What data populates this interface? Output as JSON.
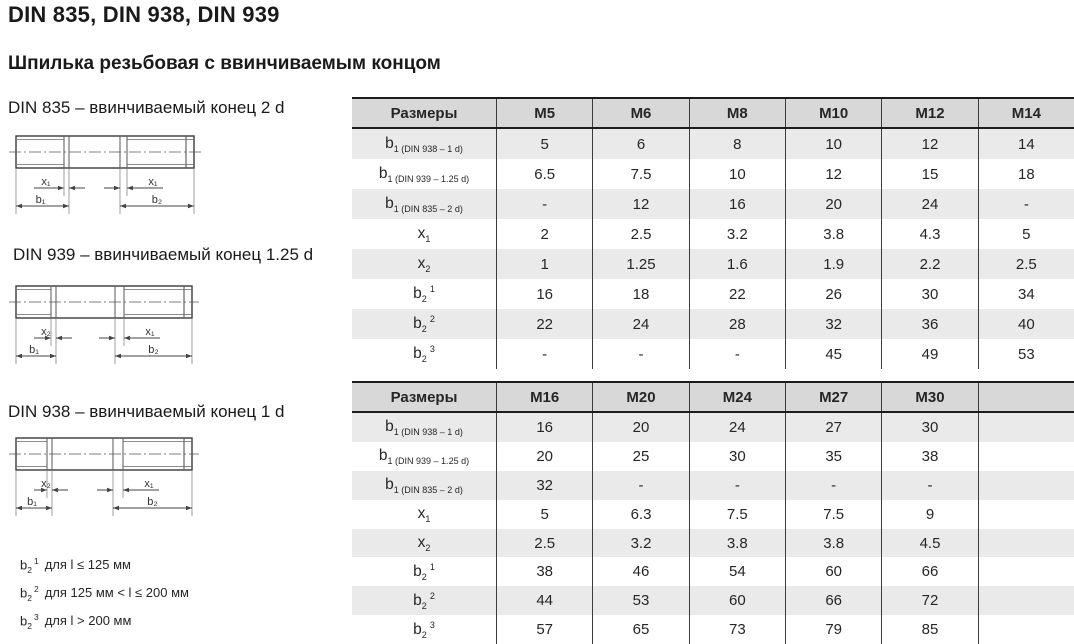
{
  "page": {
    "title": "DIN 835, DIN 938, DIN 939",
    "subtitle": "Шпилька резьбовая с ввинчиваемым концом"
  },
  "drawings": [
    {
      "caption": "DIN 835 – ввинчиваемый конец 2 d",
      "labels": {
        "x_left": "x₁",
        "x_right": "x₁",
        "b_left": "b₁",
        "b_right": "b₂"
      }
    },
    {
      "caption": "DIN 939 – ввинчиваемый конец 1.25 d",
      "labels": {
        "x_left": "x₂",
        "x_right": "x₁",
        "b_left": "b₁",
        "b_right": "b₂"
      }
    },
    {
      "caption": "DIN 938 – ввинчиваемый конец 1 d",
      "labels": {
        "x_left": "x₂",
        "x_right": "x₁",
        "b_left": "b₁",
        "b_right": "b₂"
      }
    }
  ],
  "footnotes": [
    {
      "base": "b",
      "sub": "2",
      "sup": "1",
      "text": "для l ≤ 125 мм"
    },
    {
      "base": "b",
      "sub": "2",
      "sup": "2",
      "text": "для 125 мм < l ≤ 200 мм"
    },
    {
      "base": "b",
      "sub": "2",
      "sup": "3",
      "text": "для l > 200 мм"
    }
  ],
  "tables": [
    {
      "name": "sizes-m5-m14",
      "header": [
        "Размеры",
        "M5",
        "M6",
        "M8",
        "M10",
        "M12",
        "M14"
      ],
      "rows": [
        {
          "label": {
            "base": "b",
            "sub": "1 (DIN 938 – 1 d)",
            "sup": ""
          },
          "values": [
            "5",
            "6",
            "8",
            "10",
            "12",
            "14"
          ]
        },
        {
          "label": {
            "base": "b",
            "sub": "1 (DIN 939 – 1.25 d)",
            "sup": ""
          },
          "values": [
            "6.5",
            "7.5",
            "10",
            "12",
            "15",
            "18"
          ]
        },
        {
          "label": {
            "base": "b",
            "sub": "1 (DIN 835 – 2 d)",
            "sup": ""
          },
          "values": [
            "-",
            "12",
            "16",
            "20",
            "24",
            "-"
          ]
        },
        {
          "label": {
            "base": "x",
            "sub": "1",
            "sup": ""
          },
          "values": [
            "2",
            "2.5",
            "3.2",
            "3.8",
            "4.3",
            "5"
          ]
        },
        {
          "label": {
            "base": "x",
            "sub": "2",
            "sup": ""
          },
          "values": [
            "1",
            "1.25",
            "1.6",
            "1.9",
            "2.2",
            "2.5"
          ]
        },
        {
          "label": {
            "base": "b",
            "sub": "2",
            "sup": "1"
          },
          "values": [
            "16",
            "18",
            "22",
            "26",
            "30",
            "34"
          ]
        },
        {
          "label": {
            "base": "b",
            "sub": "2",
            "sup": "2"
          },
          "values": [
            "22",
            "24",
            "28",
            "32",
            "36",
            "40"
          ]
        },
        {
          "label": {
            "base": "b",
            "sub": "2",
            "sup": "3"
          },
          "values": [
            "-",
            "-",
            "-",
            "45",
            "49",
            "53"
          ]
        }
      ]
    },
    {
      "name": "sizes-m16-m30",
      "header": [
        "Размеры",
        "M16",
        "M20",
        "M24",
        "M27",
        "M30",
        ""
      ],
      "rows": [
        {
          "label": {
            "base": "b",
            "sub": "1 (DIN 938 – 1 d)",
            "sup": ""
          },
          "values": [
            "16",
            "20",
            "24",
            "27",
            "30",
            ""
          ]
        },
        {
          "label": {
            "base": "b",
            "sub": "1 (DIN 939 – 1.25 d)",
            "sup": ""
          },
          "values": [
            "20",
            "25",
            "30",
            "35",
            "38",
            ""
          ]
        },
        {
          "label": {
            "base": "b",
            "sub": "1 (DIN 835 – 2 d)",
            "sup": ""
          },
          "values": [
            "32",
            "-",
            "-",
            "-",
            "-",
            ""
          ]
        },
        {
          "label": {
            "base": "x",
            "sub": "1",
            "sup": ""
          },
          "values": [
            "5",
            "6.3",
            "7.5",
            "7.5",
            "9",
            ""
          ]
        },
        {
          "label": {
            "base": "x",
            "sub": "2",
            "sup": ""
          },
          "values": [
            "2.5",
            "3.2",
            "3.8",
            "3.8",
            "4.5",
            ""
          ]
        },
        {
          "label": {
            "base": "b",
            "sub": "2",
            "sup": "1"
          },
          "values": [
            "38",
            "46",
            "54",
            "60",
            "66",
            ""
          ]
        },
        {
          "label": {
            "base": "b",
            "sub": "2",
            "sup": "2"
          },
          "values": [
            "44",
            "53",
            "60",
            "66",
            "72",
            ""
          ]
        },
        {
          "label": {
            "base": "b",
            "sub": "2",
            "sup": "3"
          },
          "values": [
            "57",
            "65",
            "73",
            "79",
            "85",
            ""
          ]
        }
      ]
    }
  ],
  "colors": {
    "header_bg": "#d8d8d8",
    "row_alt_bg": "#eaeaea",
    "row_bg": "#ffffff",
    "border_dark": "#1c1c1c",
    "divider": "#3c3c3c",
    "text": "#262626"
  }
}
